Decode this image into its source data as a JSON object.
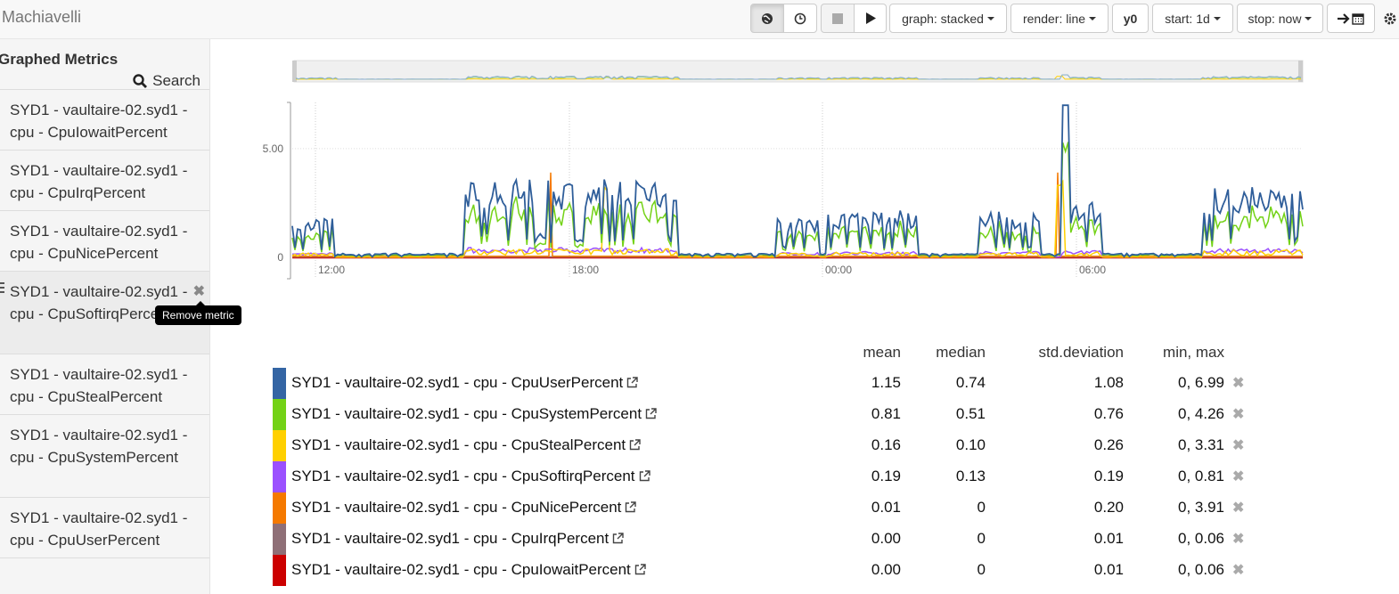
{
  "app": {
    "title": "Machiavelli"
  },
  "toolbar": {
    "globe_icon": "globe-icon",
    "clock_icon": "clock-icon",
    "stop_icon": "stop-icon",
    "play_icon": "play-icon",
    "graph_label": "graph: stacked",
    "render_label": "render: line",
    "y0_label": "y0",
    "start_label": "start: 1d",
    "stop_label": "stop: now",
    "goto_icon": "arrow-right-icon",
    "calendar_icon": "calendar-icon",
    "settings_icon": "gear-icon"
  },
  "sidebar": {
    "title": "Graphed Metrics",
    "search_label": "Search",
    "tooltip": "Remove metric",
    "items": [
      {
        "label": "SYD1 - vaultaire-02.syd1 - cpu - CpuIowaitPercent"
      },
      {
        "label": "SYD1 - vaultaire-02.syd1 - cpu - CpuIrqPercent"
      },
      {
        "label": "SYD1 - vaultaire-02.syd1 - cpu - CpuNicePercent"
      },
      {
        "label": "SYD1 - vaultaire-02.syd1 - cpu - CpuSoftirqPercent"
      },
      {
        "label": "SYD1 - vaultaire-02.syd1 - cpu - CpuStealPercent"
      },
      {
        "label": "SYD1 - vaultaire-02.syd1 - cpu - CpuSystemPercent"
      },
      {
        "label": "SYD1 - vaultaire-02.syd1 - cpu - CpuUserPercent"
      }
    ]
  },
  "chart_data": {
    "type": "line",
    "y_ticks": [
      "5.00",
      "0"
    ],
    "x_ticks": [
      "12:00",
      "18:00",
      "00:00",
      "06:00"
    ],
    "ylim": [
      0,
      7
    ],
    "grid": true
  },
  "stats": {
    "headers": {
      "mean": "mean",
      "median": "median",
      "std": "std.deviation",
      "minmax": "min, max"
    },
    "rows": [
      {
        "name": "SYD1 - vaultaire-02.syd1 - cpu - CpuUserPercent",
        "color": "#3465a4",
        "mean": "1.15",
        "median": "0.74",
        "std": "1.08",
        "minmax": "0, 6.99"
      },
      {
        "name": "SYD1 - vaultaire-02.syd1 - cpu - CpuSystemPercent",
        "color": "#73d216",
        "mean": "0.81",
        "median": "0.51",
        "std": "0.76",
        "minmax": "0, 4.26"
      },
      {
        "name": "SYD1 - vaultaire-02.syd1 - cpu - CpuStealPercent",
        "color": "#ffd000",
        "mean": "0.16",
        "median": "0.10",
        "std": "0.26",
        "minmax": "0, 3.31"
      },
      {
        "name": "SYD1 - vaultaire-02.syd1 - cpu - CpuSoftirqPercent",
        "color": "#9b51ff",
        "mean": "0.19",
        "median": "0.13",
        "std": "0.19",
        "minmax": "0, 0.81"
      },
      {
        "name": "SYD1 - vaultaire-02.syd1 - cpu - CpuNicePercent",
        "color": "#f57900",
        "mean": "0.01",
        "median": "0",
        "std": "0.20",
        "minmax": "0, 3.91"
      },
      {
        "name": "SYD1 - vaultaire-02.syd1 - cpu - CpuIrqPercent",
        "color": "#8f6f77",
        "mean": "0.00",
        "median": "0",
        "std": "0.01",
        "minmax": "0, 0.06"
      },
      {
        "name": "SYD1 - vaultaire-02.syd1 - cpu - CpuIowaitPercent",
        "color": "#cc0000",
        "mean": "0.00",
        "median": "0",
        "std": "0.01",
        "minmax": "0, 0.06"
      }
    ]
  }
}
